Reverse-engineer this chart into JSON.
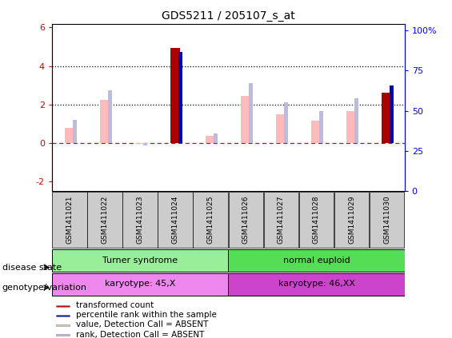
{
  "title": "GDS5211 / 205107_s_at",
  "samples": [
    "GSM1411021",
    "GSM1411022",
    "GSM1411023",
    "GSM1411024",
    "GSM1411025",
    "GSM1411026",
    "GSM1411027",
    "GSM1411028",
    "GSM1411029",
    "GSM1411030"
  ],
  "transformed_count": [
    null,
    null,
    null,
    4.95,
    null,
    null,
    null,
    null,
    null,
    2.6
  ],
  "percentile_rank": [
    null,
    null,
    null,
    4.75,
    null,
    null,
    null,
    null,
    null,
    3.0
  ],
  "value_absent": [
    0.8,
    2.25,
    -0.05,
    null,
    0.35,
    2.45,
    1.5,
    1.15,
    1.65,
    null
  ],
  "rank_absent": [
    1.2,
    2.75,
    -0.12,
    null,
    0.48,
    3.1,
    2.1,
    1.65,
    2.3,
    null
  ],
  "ylim_left": [
    -2.5,
    6.2
  ],
  "ylim_right": [
    0,
    104.2
  ],
  "yticks_left": [
    -2,
    0,
    2,
    4,
    6
  ],
  "yticks_right": [
    0,
    25,
    50,
    75,
    100
  ],
  "ytick_labels_right": [
    "0",
    "25",
    "50",
    "75",
    "100%"
  ],
  "group1_label": "Turner syndrome",
  "group2_label": "normal euploid",
  "karyotype1_label": "karyotype: 45,X",
  "karyotype2_label": "karyotype: 46,XX",
  "disease_state_label": "disease state",
  "genotype_label": "genotype/variation",
  "green1_color": "#99ee99",
  "green2_color": "#55dd55",
  "magenta1_color": "#ee88ee",
  "magenta2_color": "#cc44cc",
  "legend_items": [
    {
      "label": "transformed count",
      "color": "#cc0000"
    },
    {
      "label": "percentile rank within the sample",
      "color": "#0000cc"
    },
    {
      "label": "value, Detection Call = ABSENT",
      "color": "#ffbbbb"
    },
    {
      "label": "rank, Detection Call = ABSENT",
      "color": "#bbbbee"
    }
  ],
  "bar_color_transformed": "#aa0000",
  "bar_color_percentile": "#0000bb",
  "bar_color_value_absent": "#ffbbbb",
  "bar_color_rank_absent": "#bbbbdd",
  "gray_box_color": "#cccccc"
}
